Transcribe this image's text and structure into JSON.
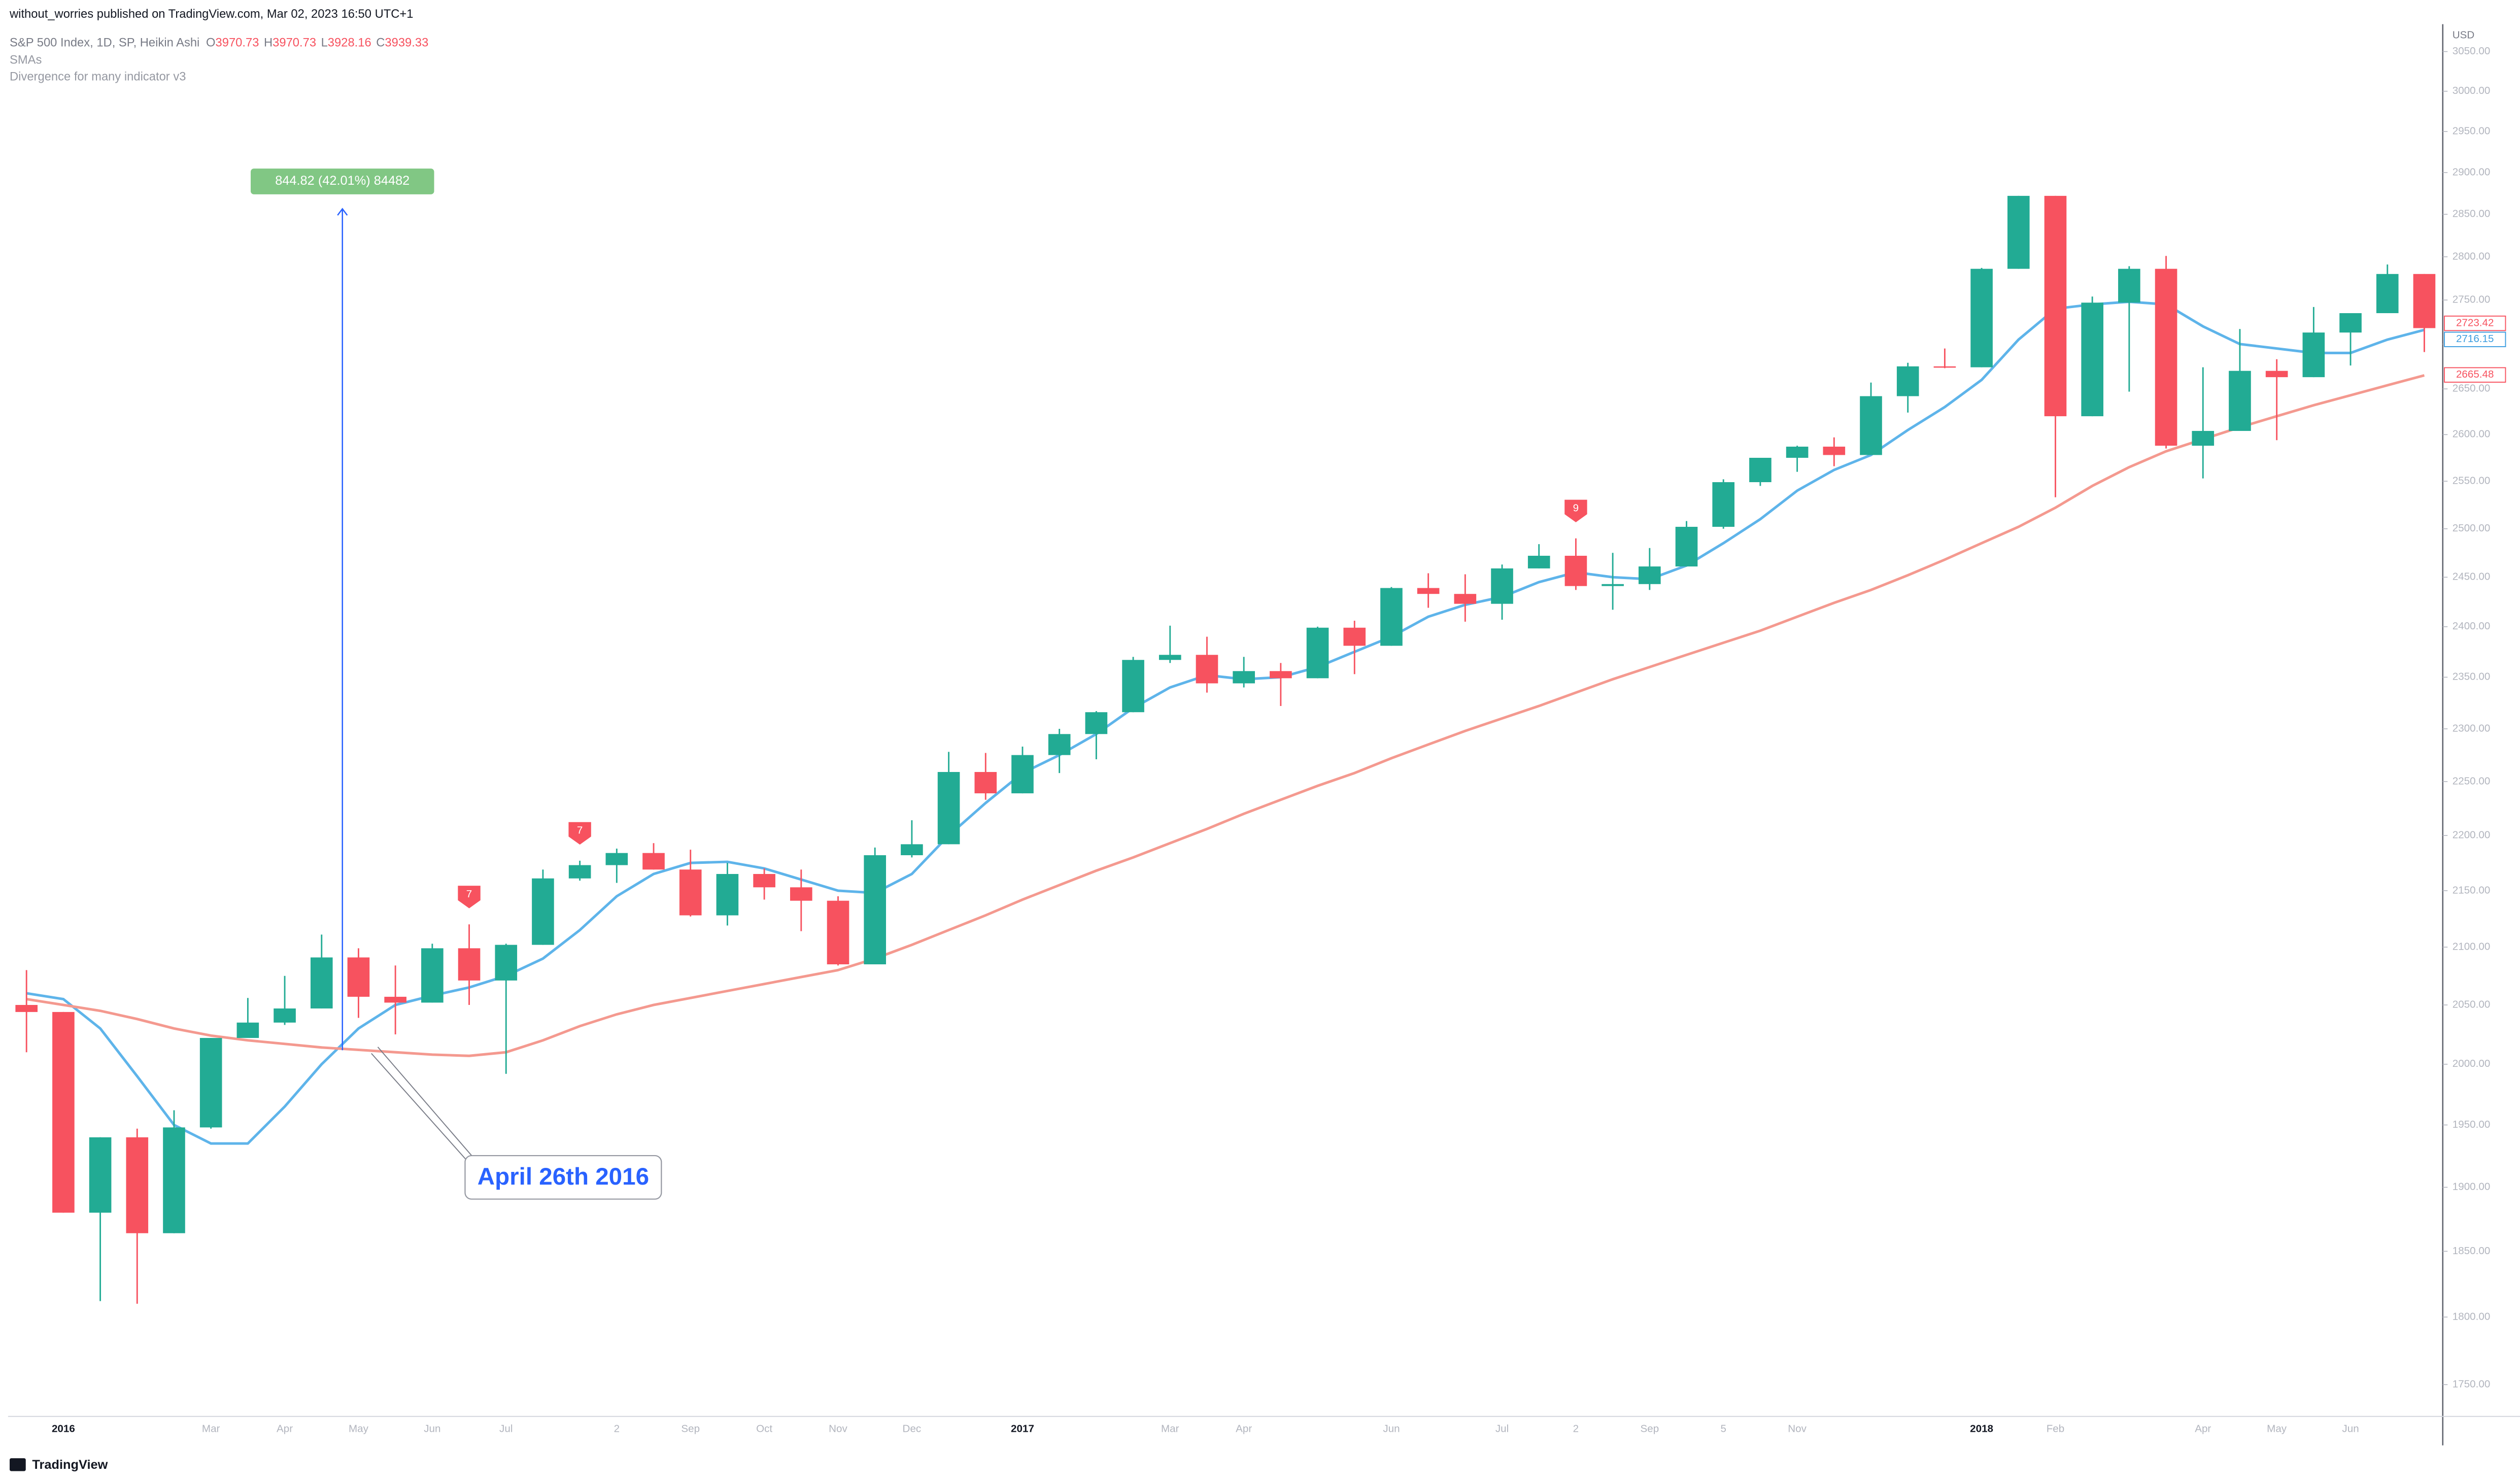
{
  "header": {
    "published": "without_worries published on TradingView.com, Mar 02, 2023 16:50 UTC+1",
    "brand": "TradingView"
  },
  "chart_data": {
    "type": "candlestick",
    "symbol": "S&P 500 Index, 1D, SP, Heikin Ashi",
    "ohlc_legend": [
      {
        "label": "O",
        "value": 3970.73
      },
      {
        "label": "H",
        "value": 3970.73
      },
      {
        "label": "L",
        "value": 3928.16
      },
      {
        "label": "C",
        "value": 3939.33
      }
    ],
    "indicators": [
      "SMAs",
      "Divergence for many indicator v3"
    ],
    "currency": "USD",
    "log_scale": true,
    "grid": false,
    "up_color": "#22ab94",
    "down_color": "#f7525f",
    "categories": [
      null,
      "2016",
      null,
      null,
      null,
      "Mar",
      null,
      "Apr",
      null,
      "May",
      null,
      "Jun",
      null,
      "Jul",
      null,
      null,
      "2",
      null,
      "Sep",
      null,
      "Oct",
      null,
      "Nov",
      null,
      "Dec",
      null,
      null,
      "2017",
      null,
      null,
      null,
      "Mar",
      null,
      "Apr",
      null,
      null,
      null,
      "Jun",
      null,
      null,
      "Jul",
      null,
      "2",
      null,
      "Sep",
      null,
      "5",
      null,
      "Nov",
      null,
      null,
      null,
      null,
      "2018",
      null,
      "Feb",
      null,
      null,
      null,
      "Apr",
      null,
      "May",
      null,
      "Jun",
      null,
      null
    ],
    "open": [
      2050,
      2044,
      1880,
      1940,
      1864,
      1948,
      2022,
      2035,
      2047,
      2091,
      2057,
      2052,
      2099,
      2071,
      2102,
      2161,
      2173,
      2184,
      2169,
      2128,
      2165,
      2153,
      2141,
      2085,
      2182,
      2192,
      2259,
      2239,
      2275,
      2295,
      2316,
      2367,
      2372,
      2344,
      2356,
      2349,
      2399,
      2381,
      2439,
      2433,
      2423,
      2459,
      2472,
      2441,
      2443,
      2461,
      2502,
      2549,
      2575,
      2587,
      2578,
      2642,
      2675,
      2674,
      2786,
      2872,
      2620,
      2747,
      2786,
      2588,
      2604,
      2670,
      2663,
      2713,
      2735,
      2780
    ],
    "high": [
      2080,
      2044,
      1940,
      1947,
      1962,
      2022,
      2056,
      2075,
      2111,
      2099,
      2084,
      2103,
      2120,
      2103,
      2169,
      2177,
      2188,
      2193,
      2187,
      2175,
      2170,
      2169,
      2145,
      2189,
      2214,
      2278,
      2277,
      2283,
      2300,
      2317,
      2370,
      2401,
      2390,
      2370,
      2364,
      2400,
      2406,
      2440,
      2454,
      2453,
      2463,
      2484,
      2490,
      2475,
      2480,
      2508,
      2552,
      2575,
      2588,
      2597,
      2657,
      2679,
      2695,
      2787,
      2872,
      2872,
      2754,
      2789,
      2801,
      2674,
      2717,
      2683,
      2742,
      2735,
      2791,
      2780
    ],
    "low": [
      2010,
      1880,
      1812,
      1810,
      1864,
      1947,
      2022,
      2033,
      2047,
      2039,
      2025,
      2052,
      2050,
      1992,
      2102,
      2159,
      2157,
      2169,
      2127,
      2119,
      2142,
      2114,
      2084,
      2085,
      2180,
      2192,
      2233,
      2239,
      2258,
      2271,
      2316,
      2364,
      2335,
      2340,
      2322,
      2349,
      2353,
      2381,
      2419,
      2405,
      2407,
      2459,
      2437,
      2417,
      2437,
      2461,
      2500,
      2545,
      2560,
      2566,
      2578,
      2624,
      2673,
      2674,
      2786,
      2533,
      2620,
      2647,
      2585,
      2553,
      2604,
      2594,
      2663,
      2676,
      2735,
      2691
    ],
    "close": [
      2044,
      1880,
      1940,
      1864,
      1948,
      2022,
      2035,
      2047,
      2091,
      2057,
      2052,
      2099,
      2071,
      2102,
      2161,
      2173,
      2184,
      2169,
      2128,
      2165,
      2153,
      2141,
      2085,
      2182,
      2192,
      2259,
      2239,
      2275,
      2295,
      2316,
      2367,
      2372,
      2344,
      2356,
      2349,
      2399,
      2381,
      2439,
      2433,
      2423,
      2459,
      2472,
      2441,
      2443,
      2461,
      2502,
      2549,
      2575,
      2587,
      2578,
      2642,
      2675,
      2674,
      2786,
      2872,
      2620,
      2747,
      2786,
      2588,
      2604,
      2670,
      2663,
      2713,
      2735,
      2780,
      2718
    ],
    "lines": [
      {
        "color": "#5eb4ea",
        "values": [
          2060,
          2055,
          2030,
          1990,
          1950,
          1935,
          1935,
          1965,
          2000,
          2030,
          2050,
          2058,
          2065,
          2075,
          2090,
          2115,
          2145,
          2165,
          2175,
          2176,
          2170,
          2160,
          2150,
          2148,
          2165,
          2200,
          2230,
          2258,
          2275,
          2295,
          2320,
          2340,
          2352,
          2348,
          2350,
          2360,
          2375,
          2390,
          2410,
          2422,
          2430,
          2445,
          2455,
          2450,
          2448,
          2462,
          2485,
          2510,
          2540,
          2562,
          2578,
          2605,
          2630,
          2660,
          2705,
          2740,
          2745,
          2748,
          2745,
          2720,
          2700,
          2695,
          2690,
          2690,
          2705,
          2716
        ]
      },
      {
        "color": "#f4998f",
        "values": [
          2055,
          2050,
          2045,
          2038,
          2030,
          2024,
          2020,
          2017,
          2014,
          2012,
          2010,
          2008,
          2007,
          2010,
          2020,
          2032,
          2042,
          2050,
          2056,
          2062,
          2068,
          2074,
          2080,
          2090,
          2102,
          2115,
          2128,
          2142,
          2155,
          2168,
          2180,
          2193,
          2206,
          2220,
          2233,
          2246,
          2258,
          2272,
          2285,
          2298,
          2310,
          2322,
          2335,
          2348,
          2360,
          2372,
          2384,
          2396,
          2410,
          2424,
          2437,
          2452,
          2468,
          2485,
          2502,
          2522,
          2545,
          2565,
          2582,
          2595,
          2608,
          2620,
          2632,
          2643,
          2654,
          2665
        ]
      }
    ],
    "price_labels": [
      {
        "value": 2723.42,
        "color": "#f7525f"
      },
      {
        "value": 2716.15,
        "color": "#3d9ee0"
      },
      {
        "value": 2665.48,
        "color": "#f7525f"
      }
    ],
    "measure": {
      "label": "844.82 (42.01%) 84482",
      "from": 2011.7,
      "to": 2856.52,
      "color": "#81c784"
    },
    "annotation": "April 26th 2016",
    "signals": [
      "7",
      "7",
      "9"
    ],
    "ylim": [
      1727,
      3085
    ],
    "yticks": [
      {
        "value": 1750,
        "label": "1750.00"
      },
      {
        "value": 1800,
        "label": "1800.00"
      },
      {
        "value": 1850,
        "label": "1850.00"
      },
      {
        "value": 1900,
        "label": "1900.00"
      },
      {
        "value": 1950,
        "label": "1950.00"
      },
      {
        "value": 2000,
        "label": "2000.00"
      },
      {
        "value": 2050,
        "label": "2050.00"
      },
      {
        "value": 2100,
        "label": "2100.00"
      },
      {
        "value": 2150,
        "label": "2150.00"
      },
      {
        "value": 2200,
        "label": "2200.00"
      },
      {
        "value": 2250,
        "label": "2250.00"
      },
      {
        "value": 2300,
        "label": "2300.00"
      },
      {
        "value": 2350,
        "label": "2350.00"
      },
      {
        "value": 2400,
        "label": "2400.00"
      },
      {
        "value": 2450,
        "label": "2450.00"
      },
      {
        "value": 2500,
        "label": "2500.00"
      },
      {
        "value": 2550,
        "label": "2550.00"
      },
      {
        "value": 2600,
        "label": "2600.00"
      },
      {
        "value": 2650,
        "label": "2650.00"
      },
      {
        "value": 2700,
        "label": "2700.00"
      },
      {
        "value": 2750,
        "label": "2750.00"
      },
      {
        "value": 2800,
        "label": "2800.00"
      },
      {
        "value": 2850,
        "label": "2850.00"
      },
      {
        "value": 2900,
        "label": "2900.00"
      },
      {
        "value": 2950,
        "label": "2950.00"
      },
      {
        "value": 3000,
        "label": "3000.00"
      },
      {
        "value": 3050,
        "label": "3050.00"
      }
    ]
  }
}
